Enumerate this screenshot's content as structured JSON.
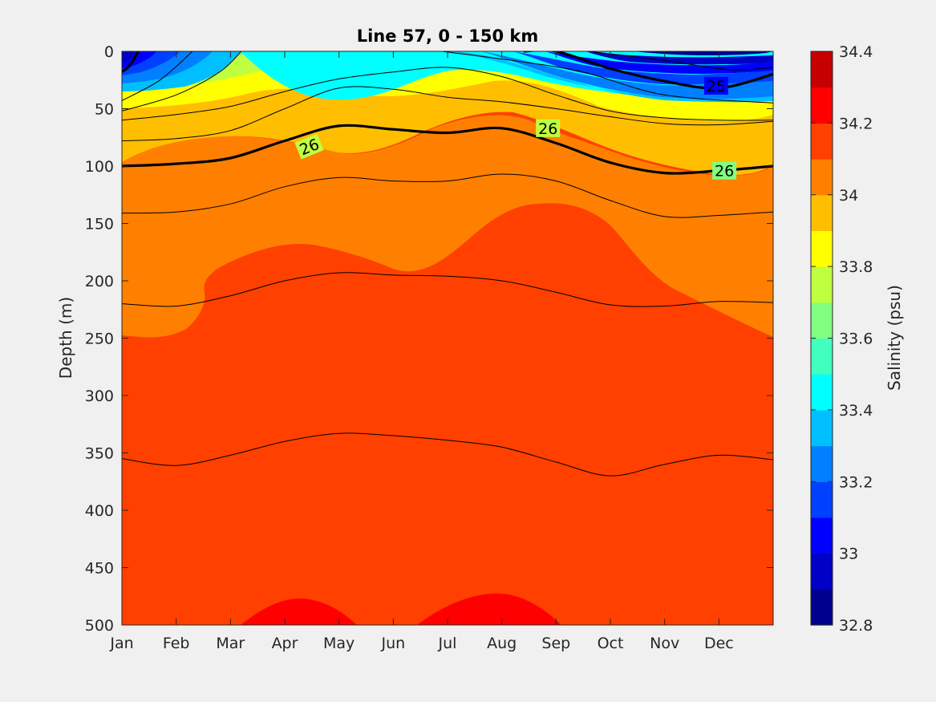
{
  "chart_data": {
    "type": "heatmap",
    "title": "Line 57, 0 - 150 km",
    "xlabel": "",
    "ylabel": "Depth (m)",
    "x_categories": [
      "Jan",
      "Feb",
      "Mar",
      "Apr",
      "May",
      "Jun",
      "Jul",
      "Aug",
      "Sep",
      "Oct",
      "Nov",
      "Dec"
    ],
    "y_ticks": [
      0,
      50,
      100,
      150,
      200,
      250,
      300,
      350,
      400,
      450,
      500
    ],
    "ylim": [
      0,
      500
    ],
    "y_reversed": true,
    "colorbar": {
      "label": "Salinity (psu)",
      "range": [
        32.8,
        34.4
      ],
      "tick_values": [
        32.8,
        33,
        33.2,
        33.4,
        33.6,
        33.8,
        34,
        34.2,
        34.4
      ],
      "tick_labels": [
        "32.8",
        "33",
        "33.2",
        "33.4",
        "33.6",
        "33.8",
        "34",
        "34.2",
        "34.4"
      ],
      "levels": [
        {
          "from": 32.8,
          "to": 32.9,
          "color": "#00008f"
        },
        {
          "from": 32.9,
          "to": 33.0,
          "color": "#0000c6"
        },
        {
          "from": 33.0,
          "to": 33.1,
          "color": "#0000ff"
        },
        {
          "from": 33.1,
          "to": 33.2,
          "color": "#0040ff"
        },
        {
          "from": 33.2,
          "to": 33.3,
          "color": "#0080ff"
        },
        {
          "from": 33.3,
          "to": 33.4,
          "color": "#00bfff"
        },
        {
          "from": 33.4,
          "to": 33.5,
          "color": "#00ffff"
        },
        {
          "from": 33.5,
          "to": 33.6,
          "color": "#40ffbf"
        },
        {
          "from": 33.6,
          "to": 33.7,
          "color": "#80ff80"
        },
        {
          "from": 33.7,
          "to": 33.8,
          "color": "#bfff40"
        },
        {
          "from": 33.8,
          "to": 33.9,
          "color": "#ffff00"
        },
        {
          "from": 33.9,
          "to": 34.0,
          "color": "#ffbf00"
        },
        {
          "from": 34.0,
          "to": 34.1,
          "color": "#ff8000"
        },
        {
          "from": 34.1,
          "to": 34.2,
          "color": "#ff4000"
        },
        {
          "from": 34.2,
          "to": 34.3,
          "color": "#ff0000"
        },
        {
          "from": 34.3,
          "to": 34.4,
          "color": "#c60000"
        }
      ]
    },
    "isopycnal_labels": [
      {
        "text": "26",
        "month": 3.45,
        "depth": 83
      },
      {
        "text": "26",
        "month": 7.85,
        "depth": 67
      },
      {
        "text": "26",
        "month": 11.1,
        "depth": 104
      },
      {
        "text": "25",
        "month": 10.95,
        "depth": 30
      }
    ],
    "thick_isopycnals": [
      {
        "name": "26",
        "depths": [
          100,
          98,
          93,
          78,
          65,
          68,
          71,
          67,
          80,
          97,
          106,
          104,
          100
        ]
      },
      {
        "name": "25",
        "depths": [
          null,
          null,
          null,
          null,
          null,
          null,
          null,
          null,
          0,
          15,
          26,
          32,
          20
        ]
      }
    ],
    "thin_isopycnals": [
      [
        60,
        55,
        48,
        35,
        24,
        18,
        14,
        22,
        38,
        52,
        58,
        60,
        60
      ],
      [
        78,
        76,
        69,
        50,
        32,
        33,
        40,
        44,
        50,
        57,
        63,
        64,
        61
      ],
      [
        141,
        140,
        133,
        118,
        110,
        113,
        113,
        107,
        113,
        130,
        144,
        143,
        140
      ],
      [
        220,
        222,
        213,
        200,
        193,
        195,
        196,
        200,
        210,
        221,
        222,
        218,
        219
      ],
      [
        355,
        361,
        352,
        340,
        333,
        335,
        339,
        345,
        358,
        370,
        360,
        352,
        356
      ]
    ],
    "thin_surface_segments": [
      [
        [
          0,
          43
        ],
        [
          0.7,
          25
        ],
        [
          1.3,
          0
        ]
      ],
      [
        [
          0,
          52
        ],
        [
          1.0,
          38
        ],
        [
          1.8,
          18
        ],
        [
          2.2,
          0
        ]
      ]
    ]
  }
}
